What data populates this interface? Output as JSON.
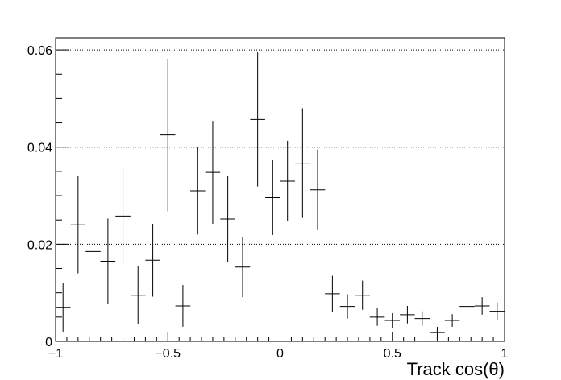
{
  "chart_data": {
    "type": "scatter",
    "xlabel": "Track cos(θ)",
    "ylabel": "",
    "title": "",
    "xlim": [
      -1,
      1
    ],
    "ylim": [
      0,
      0.0625
    ],
    "x_ticks": [
      {
        "value": -1,
        "label": "−1"
      },
      {
        "value": -0.5,
        "label": "−0.5"
      },
      {
        "value": 0,
        "label": "0"
      },
      {
        "value": 0.5,
        "label": "0.5"
      },
      {
        "value": 1,
        "label": "1"
      }
    ],
    "y_ticks": [
      {
        "value": 0,
        "label": "0"
      },
      {
        "value": 0.02,
        "label": "0.02"
      },
      {
        "value": 0.04,
        "label": "0.04"
      },
      {
        "value": 0.06,
        "label": "0.06"
      }
    ],
    "grid": "horizontal dotted at major y ticks",
    "bin_half_width": 0.0333,
    "series": [
      {
        "style": "error-bars",
        "points": [
          {
            "x": -0.967,
            "y": 0.007,
            "err": 0.005
          },
          {
            "x": -0.9,
            "y": 0.024,
            "err": 0.01
          },
          {
            "x": -0.833,
            "y": 0.0185,
            "err": 0.0067
          },
          {
            "x": -0.767,
            "y": 0.0165,
            "err": 0.0088
          },
          {
            "x": -0.7,
            "y": 0.0258,
            "err": 0.01
          },
          {
            "x": -0.633,
            "y": 0.0095,
            "err": 0.006
          },
          {
            "x": -0.567,
            "y": 0.0167,
            "err": 0.0075
          },
          {
            "x": -0.5,
            "y": 0.0425,
            "err": 0.0157
          },
          {
            "x": -0.433,
            "y": 0.0073,
            "err": 0.0043
          },
          {
            "x": -0.367,
            "y": 0.031,
            "err": 0.009
          },
          {
            "x": -0.3,
            "y": 0.0348,
            "err": 0.0106
          },
          {
            "x": -0.233,
            "y": 0.0252,
            "err": 0.0088
          },
          {
            "x": -0.167,
            "y": 0.0153,
            "err": 0.0062
          },
          {
            "x": -0.1,
            "y": 0.0457,
            "err": 0.0138
          },
          {
            "x": -0.033,
            "y": 0.0296,
            "err": 0.0077
          },
          {
            "x": 0.033,
            "y": 0.033,
            "err": 0.0083
          },
          {
            "x": 0.1,
            "y": 0.0367,
            "err": 0.0113
          },
          {
            "x": 0.167,
            "y": 0.0312,
            "err": 0.0083
          },
          {
            "x": 0.233,
            "y": 0.0098,
            "err": 0.0037
          },
          {
            "x": 0.3,
            "y": 0.0072,
            "err": 0.0025
          },
          {
            "x": 0.367,
            "y": 0.0095,
            "err": 0.003
          },
          {
            "x": 0.433,
            "y": 0.005,
            "err": 0.0018
          },
          {
            "x": 0.5,
            "y": 0.0043,
            "err": 0.0015
          },
          {
            "x": 0.567,
            "y": 0.0055,
            "err": 0.0018
          },
          {
            "x": 0.633,
            "y": 0.0047,
            "err": 0.0015
          },
          {
            "x": 0.7,
            "y": 0.0018,
            "err": 0.0012
          },
          {
            "x": 0.767,
            "y": 0.0043,
            "err": 0.0013
          },
          {
            "x": 0.833,
            "y": 0.0072,
            "err": 0.0018
          },
          {
            "x": 0.9,
            "y": 0.0073,
            "err": 0.0018
          },
          {
            "x": 0.967,
            "y": 0.0062,
            "err": 0.0018
          }
        ]
      }
    ]
  }
}
